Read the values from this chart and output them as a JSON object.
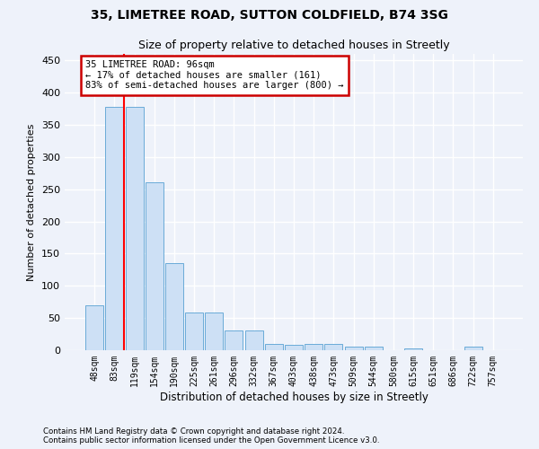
{
  "title1": "35, LIMETREE ROAD, SUTTON COLDFIELD, B74 3SG",
  "title2": "Size of property relative to detached houses in Streetly",
  "xlabel": "Distribution of detached houses by size in Streetly",
  "ylabel": "Number of detached properties",
  "categories": [
    "48sqm",
    "83sqm",
    "119sqm",
    "154sqm",
    "190sqm",
    "225sqm",
    "261sqm",
    "296sqm",
    "332sqm",
    "367sqm",
    "403sqm",
    "438sqm",
    "473sqm",
    "509sqm",
    "544sqm",
    "580sqm",
    "615sqm",
    "651sqm",
    "686sqm",
    "722sqm",
    "757sqm"
  ],
  "values": [
    70,
    378,
    378,
    260,
    135,
    58,
    58,
    30,
    30,
    10,
    8,
    10,
    10,
    5,
    5,
    0,
    3,
    0,
    0,
    5,
    0
  ],
  "bar_color": "#cde0f5",
  "bar_edge_color": "#6aabd8",
  "red_line_x": 1.48,
  "annotation_line1": "35 LIMETREE ROAD: 96sqm",
  "annotation_line2": "← 17% of detached houses are smaller (161)",
  "annotation_line3": "83% of semi-detached houses are larger (800) →",
  "annotation_box_color": "#ffffff",
  "annotation_box_edge": "#cc0000",
  "ylim": [
    0,
    460
  ],
  "yticks": [
    0,
    50,
    100,
    150,
    200,
    250,
    300,
    350,
    400,
    450
  ],
  "footer1": "Contains HM Land Registry data © Crown copyright and database right 2024.",
  "footer2": "Contains public sector information licensed under the Open Government Licence v3.0.",
  "bg_color": "#eef2fa",
  "grid_color": "#ffffff",
  "title1_fontsize": 10,
  "title2_fontsize": 9
}
